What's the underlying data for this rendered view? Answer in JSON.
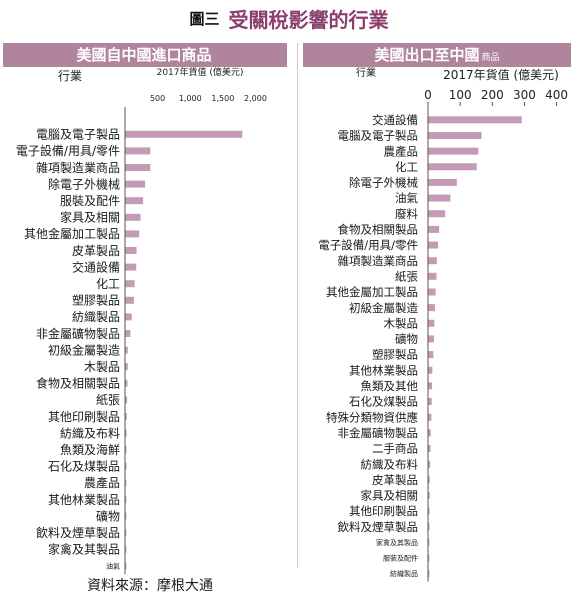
{
  "title": {
    "figure_no": "圖三",
    "main": "受關稅影響的行業"
  },
  "panels": [
    {
      "header": "美國自中國進口商品",
      "header_small": ""
    },
    {
      "header": "美國出口至中國",
      "header_small": "商品"
    }
  ],
  "source": "資料來源：摩根大通",
  "colors": {
    "bar": "#c49ab6",
    "header": "#b1849e",
    "title": "#8c3f6e",
    "axis": "#555555"
  },
  "chart_data": [
    {
      "type": "bar",
      "orientation": "horizontal",
      "title": "美國自中國進口商品",
      "ylabel": "行業",
      "xlabel": "2017年貨值 (億美元)",
      "xlim": [
        0,
        2100
      ],
      "xticks": [
        500,
        1000,
        1500,
        2000
      ],
      "xtick_labels": [
        "500",
        "1,000",
        "1,500",
        "2,000"
      ],
      "categories": [
        "電腦及電子製品",
        "電子設備/用具/零件",
        "雜項製造業商品",
        "除電子外機械",
        "服裝及配件",
        "家具及相關",
        "其他金屬加工製品",
        "皮革製品",
        "交通設備",
        "化工",
        "塑膠製品",
        "紡織製品",
        "非金屬礦物製品",
        "初級金屬製造",
        "木製品",
        "食物及相關製品",
        "紙張",
        "其他印刷製品",
        "紡織及布料",
        "魚類及海鮮",
        "石化及煤製品",
        "農產品",
        "其他林業製品",
        "礦物",
        "飲料及煙草製品",
        "家禽及其製品",
        "油氣"
      ],
      "values": [
        1790,
        380,
        380,
        300,
        270,
        230,
        210,
        170,
        165,
        140,
        130,
        95,
        75,
        35,
        35,
        30,
        25,
        20,
        18,
        15,
        15,
        12,
        10,
        8,
        6,
        5,
        3
      ]
    },
    {
      "type": "bar",
      "orientation": "horizontal",
      "title": "美國出口至中國商品",
      "ylabel": "行業",
      "xlabel": "2017年貨值 (億美元)",
      "xlim": [
        0,
        420
      ],
      "xticks": [
        0,
        100,
        200,
        300,
        400
      ],
      "xtick_labels": [
        "0",
        "100",
        "200",
        "300",
        "400"
      ],
      "categories": [
        "交通設備",
        "電腦及電子製品",
        "農產品",
        "化工",
        "除電子外機械",
        "油氣",
        "廢料",
        "食物及相關製品",
        "電子設備/用具/零件",
        "雜項製造業商品",
        "紙張",
        "其他金屬加工製品",
        "初級金屬製造",
        "木製品",
        "礦物",
        "塑膠製品",
        "其他林業製品",
        "魚類及其他",
        "石化及煤製品",
        "特殊分類物資供應",
        "非金屬礦物製品",
        "二手商品",
        "紡織及布料",
        "皮革製品",
        "家具及相關",
        "其他印刷製品",
        "飲料及煙草製品",
        "家禽及其製品",
        "服裝及配件",
        "紡織製品"
      ],
      "values": [
        290,
        165,
        155,
        150,
        88,
        68,
        52,
        33,
        30,
        26,
        25,
        22,
        20,
        18,
        17,
        15,
        12,
        11,
        10,
        9,
        7,
        6,
        5,
        4,
        4,
        3,
        3,
        2,
        2,
        1
      ]
    }
  ]
}
